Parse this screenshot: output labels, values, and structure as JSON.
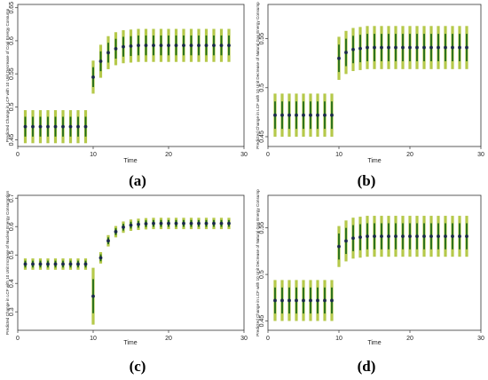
{
  "chart_data": [
    {
      "panel": "(a)",
      "type": "scatter",
      "title": "",
      "xlabel": "Time",
      "ylabel": "Predicted Change in LCF with 10 Unit Decrease of Coal Energy Consump",
      "xlim": [
        0,
        30
      ],
      "ylim": [
        0.44,
        0.655
      ],
      "xticks": [
        0,
        10,
        20,
        30
      ],
      "yticks": [
        0.45,
        0.5,
        0.55,
        0.6,
        0.65
      ],
      "ytick_labels": [
        "0.45",
        "0.5",
        "0.55",
        "0.6",
        "0.65"
      ],
      "grid": false,
      "x": [
        1,
        2,
        3,
        4,
        5,
        6,
        7,
        8,
        9,
        10,
        11,
        12,
        13,
        14,
        15,
        16,
        17,
        18,
        19,
        20,
        21,
        22,
        23,
        24,
        25,
        26,
        27,
        28
      ],
      "series": [
        {
          "values": [
            0.47,
            0.47,
            0.47,
            0.47,
            0.47,
            0.47,
            0.47,
            0.47,
            0.47,
            0.545,
            0.569,
            0.582,
            0.588,
            0.591,
            0.592,
            0.593,
            0.593,
            0.593,
            0.593,
            0.593,
            0.593,
            0.593,
            0.593,
            0.593,
            0.593,
            0.593,
            0.593,
            0.593
          ],
          "ci_inner": 0.015,
          "ci_outer": 0.025
        }
      ]
    },
    {
      "panel": "(b)",
      "type": "scatter",
      "title": "",
      "xlabel": "Time",
      "ylabel": "Predicted Change in LCF with 10 Unit Decrease of Natural Gas Energy Consump",
      "xlim": [
        0,
        30
      ],
      "ylim": [
        0.44,
        0.585
      ],
      "xticks": [
        0,
        10,
        20,
        30
      ],
      "yticks": [
        0.45,
        0.5,
        0.55
      ],
      "ytick_labels": [
        "0.45",
        "0.5",
        "0.55"
      ],
      "grid": false,
      "x": [
        1,
        2,
        3,
        4,
        5,
        6,
        7,
        8,
        9,
        10,
        11,
        12,
        13,
        14,
        15,
        16,
        17,
        18,
        19,
        20,
        21,
        22,
        23,
        24,
        25,
        26,
        27,
        28
      ],
      "series": [
        {
          "values": [
            0.472,
            0.472,
            0.472,
            0.472,
            0.472,
            0.472,
            0.472,
            0.472,
            0.472,
            0.53,
            0.536,
            0.539,
            0.54,
            0.541,
            0.541,
            0.541,
            0.541,
            0.541,
            0.541,
            0.541,
            0.541,
            0.541,
            0.541,
            0.541,
            0.541,
            0.541,
            0.541,
            0.541
          ],
          "ci_inner": 0.014,
          "ci_outer": 0.022
        }
      ]
    },
    {
      "panel": "(c)",
      "type": "scatter",
      "title": "",
      "xlabel": "Time",
      "ylabel": "Predicted Change in LCF with 10 Unit Increase of Nuclear Energy Consumption",
      "xlim": [
        0,
        30
      ],
      "ylim": [
        0.235,
        0.71
      ],
      "xticks": [
        0,
        10,
        20,
        30
      ],
      "yticks": [
        0.3,
        0.4,
        0.5,
        0.6,
        0.7
      ],
      "ytick_labels": [
        "0.3",
        "0.4",
        "0.5",
        "0.6",
        "0.7"
      ],
      "grid": false,
      "x": [
        1,
        2,
        3,
        4,
        5,
        6,
        7,
        8,
        9,
        10,
        11,
        12,
        13,
        14,
        15,
        16,
        17,
        18,
        19,
        20,
        21,
        22,
        23,
        24,
        25,
        26,
        27,
        28
      ],
      "series": [
        {
          "values": [
            0.468,
            0.468,
            0.468,
            0.468,
            0.468,
            0.468,
            0.468,
            0.468,
            0.468,
            0.355,
            0.49,
            0.55,
            0.582,
            0.598,
            0.605,
            0.608,
            0.61,
            0.611,
            0.611,
            0.611,
            0.611,
            0.611,
            0.611,
            0.611,
            0.611,
            0.611,
            0.611,
            0.611
          ],
          "ci_inner": 0.012,
          "ci_outer": 0.02,
          "ci_inner_at_10": 0.06,
          "ci_outer_at_10": 0.1
        }
      ]
    },
    {
      "panel": "(d)",
      "type": "scatter",
      "title": "",
      "xlabel": "Time",
      "ylabel": "Predicted Change in LCF with 10 Unit Decrease of Natural Gas Energy Consump",
      "xlim": [
        0,
        30
      ],
      "ylim": [
        0.44,
        0.585
      ],
      "xticks": [
        0,
        10,
        20,
        30
      ],
      "yticks": [
        0.45,
        0.5,
        0.55
      ],
      "ytick_labels": [
        "0.45",
        "0.5",
        "0.55"
      ],
      "grid": false,
      "x": [
        1,
        2,
        3,
        4,
        5,
        6,
        7,
        8,
        9,
        10,
        11,
        12,
        13,
        14,
        15,
        16,
        17,
        18,
        19,
        20,
        21,
        22,
        23,
        24,
        25,
        26,
        27,
        28
      ],
      "series": [
        {
          "values": [
            0.472,
            0.472,
            0.472,
            0.472,
            0.472,
            0.472,
            0.472,
            0.472,
            0.472,
            0.53,
            0.536,
            0.539,
            0.54,
            0.541,
            0.541,
            0.541,
            0.541,
            0.541,
            0.541,
            0.541,
            0.541,
            0.541,
            0.541,
            0.541,
            0.541,
            0.541,
            0.541,
            0.541
          ],
          "ci_inner": 0.014,
          "ci_outer": 0.022
        }
      ]
    }
  ],
  "colors": {
    "outer_ci": "#b5c94a",
    "inner_ci": "#1f6b1a",
    "point": "#1a2a4a",
    "axis": "#333333"
  }
}
